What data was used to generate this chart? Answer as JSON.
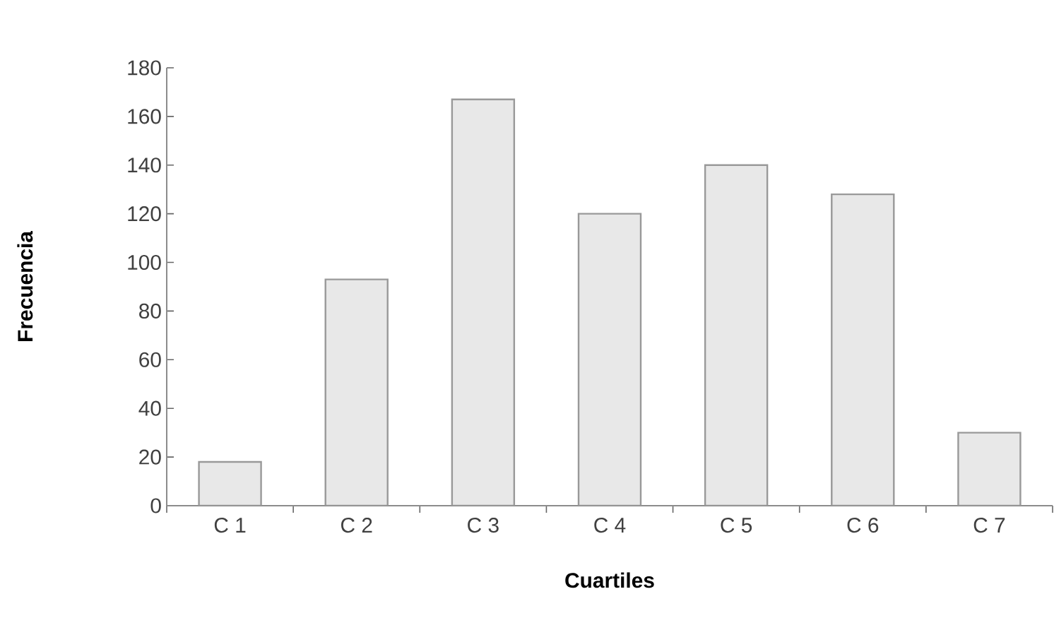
{
  "chart_data": {
    "type": "bar",
    "xlabel": "Cuartiles",
    "ylabel": "Frecuencia",
    "categories": [
      "C 1",
      "C 2",
      "C 3",
      "C 4",
      "C 5",
      "C 6",
      "C 7"
    ],
    "values": [
      18,
      93,
      167,
      120,
      140,
      128,
      30
    ],
    "color": "#e8e8e8",
    "ylim": [
      0,
      180
    ],
    "yticks": [
      0,
      20,
      40,
      60,
      80,
      100,
      120,
      140,
      160,
      180
    ],
    "grid": false
  }
}
